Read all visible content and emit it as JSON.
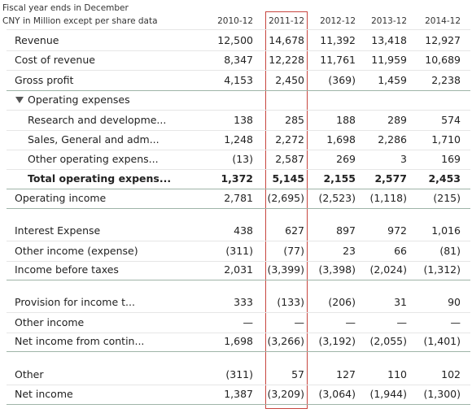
{
  "header": {
    "line1": "Fiscal year ends in December",
    "line2": "CNY in Million except per share data",
    "columns": [
      "2010-12",
      "2011-12",
      "2012-12",
      "2013-12",
      "2014-12"
    ]
  },
  "table": {
    "rows": [
      {
        "label": "Revenue",
        "values": [
          "12,500",
          "14,678",
          "11,392",
          "13,418",
          "12,927"
        ]
      },
      {
        "label": "Cost of revenue",
        "values": [
          "8,347",
          "12,228",
          "11,761",
          "11,959",
          "10,689"
        ]
      },
      {
        "label": "Gross profit",
        "values": [
          "4,153",
          "2,450",
          "(369)",
          "1,459",
          "2,238"
        ]
      },
      {
        "label": "Operating expenses"
      },
      {
        "label": "Research and developme...",
        "values": [
          "138",
          "285",
          "188",
          "289",
          "574"
        ]
      },
      {
        "label": "Sales, General and adm...",
        "values": [
          "1,248",
          "2,272",
          "1,698",
          "2,286",
          "1,710"
        ]
      },
      {
        "label": "Other operating expens...",
        "values": [
          "(13)",
          "2,587",
          "269",
          "3",
          "169"
        ]
      },
      {
        "label": "Total operating expens...",
        "values": [
          "1,372",
          "5,145",
          "2,155",
          "2,577",
          "2,453"
        ]
      },
      {
        "label": "Operating income",
        "values": [
          "2,781",
          "(2,695)",
          "(2,523)",
          "(1,118)",
          "(215)"
        ]
      },
      {
        "label": "Interest Expense",
        "values": [
          "438",
          "627",
          "897",
          "972",
          "1,016"
        ]
      },
      {
        "label": "Other income (expense)",
        "values": [
          "(311)",
          "(77)",
          "23",
          "66",
          "(81)"
        ]
      },
      {
        "label": "Income before taxes",
        "values": [
          "2,031",
          "(3,399)",
          "(3,398)",
          "(2,024)",
          "(1,312)"
        ]
      },
      {
        "label": "Provision for income t...",
        "values": [
          "333",
          "(133)",
          "(206)",
          "31",
          "90"
        ]
      },
      {
        "label": "Other income",
        "values": [
          "—",
          "—",
          "—",
          "—",
          "—"
        ]
      },
      {
        "label": "Net income from contin...",
        "values": [
          "1,698",
          "(3,266)",
          "(3,192)",
          "(2,055)",
          "(1,401)"
        ]
      },
      {
        "label": "Other",
        "values": [
          "(311)",
          "57",
          "127",
          "110",
          "102"
        ]
      },
      {
        "label": "Net income",
        "values": [
          "1,387",
          "(3,209)",
          "(3,064)",
          "(1,944)",
          "(1,300)"
        ]
      }
    ]
  }
}
